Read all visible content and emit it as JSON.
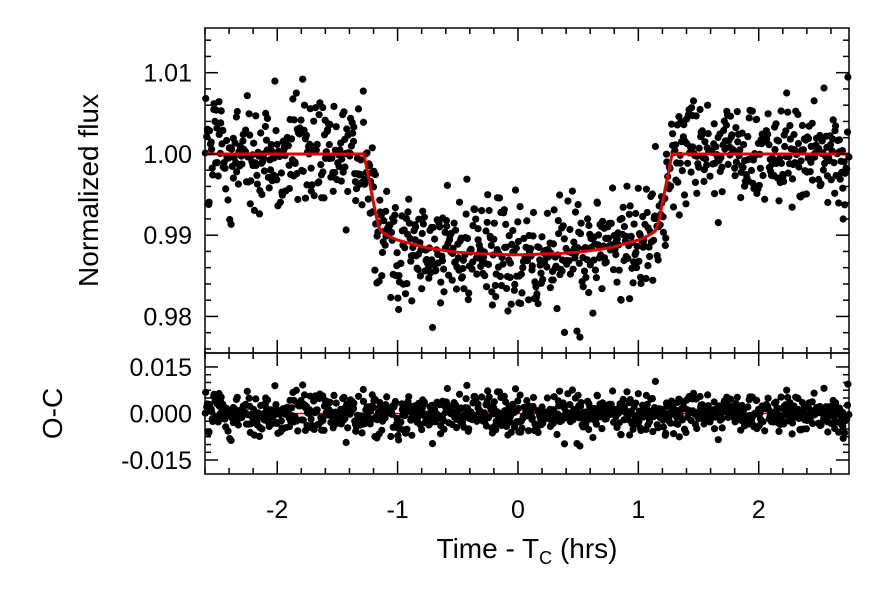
{
  "chart_data": [
    {
      "type": "scatter",
      "panel": "top",
      "title": "",
      "ylabel": "Normalized flux",
      "xlim": [
        -2.6,
        2.75
      ],
      "ylim": [
        0.9755,
        1.0155
      ],
      "yticks": [
        0.98,
        0.99,
        1.0,
        1.01
      ],
      "ytick_labels": [
        "0.98",
        "0.99",
        "1.00",
        "1.01"
      ],
      "grid": false,
      "legend": "none",
      "marker_color": "#000000",
      "model_color": "#e00000",
      "transit_model": {
        "x": [
          -2.6,
          -1.28,
          -1.26,
          -1.24,
          -1.22,
          -1.2,
          -1.18,
          -1.16,
          -1.14,
          -1.12,
          -1.1,
          -1.05,
          -1.0,
          -0.9,
          -0.8,
          -0.7,
          -0.6,
          -0.5,
          -0.4,
          -0.3,
          -0.2,
          -0.1,
          0.0,
          0.1,
          0.2,
          0.3,
          0.4,
          0.5,
          0.6,
          0.7,
          0.8,
          0.9,
          1.0,
          1.05,
          1.1,
          1.12,
          1.14,
          1.16,
          1.18,
          1.2,
          1.22,
          1.24,
          1.26,
          1.28,
          2.75
        ],
        "y": [
          1.0,
          1.0,
          0.9985,
          0.997,
          0.9955,
          0.994,
          0.9925,
          0.9912,
          0.9905,
          0.9903,
          0.9901,
          0.9897,
          0.9894,
          0.989,
          0.9886,
          0.9883,
          0.9881,
          0.9879,
          0.9878,
          0.9877,
          0.9877,
          0.9876,
          0.9876,
          0.9876,
          0.9877,
          0.9877,
          0.9878,
          0.9879,
          0.9881,
          0.9883,
          0.9886,
          0.989,
          0.9894,
          0.9897,
          0.9901,
          0.9903,
          0.9905,
          0.9912,
          0.9925,
          0.994,
          0.9955,
          0.997,
          0.9985,
          1.0,
          1.0
        ]
      },
      "points": {
        "x_start": -2.6,
        "x_end": 2.75,
        "count": 1000,
        "approx_scatter": 0.0032,
        "seed": 20240517
      }
    },
    {
      "type": "scatter",
      "panel": "bottom",
      "ylabel": "O-C",
      "xlabel_main": "Time - T",
      "xlabel_sub": "C",
      "xlabel_unit": " (hrs)",
      "xlim": [
        -2.6,
        2.75
      ],
      "ylim": [
        -0.0195,
        0.0195
      ],
      "yticks": [
        -0.015,
        0.0,
        0.015
      ],
      "ytick_labels": [
        "-0.015",
        "0.000",
        "0.015"
      ],
      "xticks": [
        -2,
        -1,
        0,
        1,
        2
      ],
      "xtick_labels": [
        "-2",
        "-1",
        "0",
        "1",
        "2"
      ],
      "zero_line_color": "#e00000",
      "marker_color": "#000000"
    }
  ]
}
